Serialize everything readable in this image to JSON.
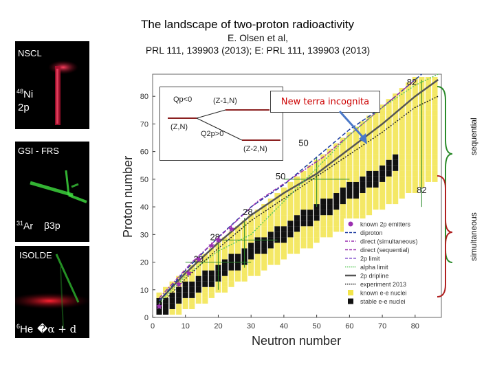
{
  "slide": {
    "title": "The landscape of two-proton radioactivity",
    "citation": "E. Olsen et al,\nPRL 111, 139903 (2013); E: PRL 111, 139903 (2013)",
    "callout": "New terra incognita",
    "bracket_labels": {
      "sequential": "sequential",
      "simultaneous": "simultaneous"
    }
  },
  "panels": [
    {
      "facility": "NSCL",
      "nucleus_mass": "48",
      "nucleus": "Ni",
      "decay": "2p"
    },
    {
      "facility": "GSI - FRS",
      "nucleus_mass": "31",
      "nucleus": "Ar",
      "decay": "β3p"
    },
    {
      "facility": "ISOLDE",
      "nucleus_mass": "6",
      "nucleus": "He",
      "decay": "�α + d"
    }
  ],
  "chart_data": {
    "type": "scatter",
    "xlabel": "Neutron number",
    "ylabel": "Proton number",
    "xlim": [
      0,
      88
    ],
    "ylim": [
      0,
      88
    ],
    "xticks": [
      0,
      10,
      20,
      30,
      40,
      50,
      60,
      70,
      80
    ],
    "yticks": [
      0,
      10,
      20,
      30,
      40,
      50,
      60,
      70,
      80
    ],
    "magic_labels": [
      {
        "text": "82",
        "x": 79,
        "y": 84
      },
      {
        "text": "50",
        "x": 46,
        "y": 62
      },
      {
        "text": "50",
        "x": 39,
        "y": 50
      },
      {
        "text": "82",
        "x": 82,
        "y": 45
      },
      {
        "text": "28",
        "x": 29,
        "y": 37
      },
      {
        "text": "28",
        "x": 19,
        "y": 28
      },
      {
        "text": "20",
        "x": 14,
        "y": 20
      }
    ],
    "inset": {
      "levels": [
        "(Z-1,N)",
        "(Z,N)",
        "(Z-2,N)"
      ],
      "q_labels": [
        "Qp<0",
        "Q2p>0"
      ]
    },
    "legend": {
      "position": "lower-right",
      "entries": [
        {
          "label": "known 2p emitters",
          "color": "#9b30b0",
          "style": "star"
        },
        {
          "label": "diproton",
          "color": "#1a3aa0",
          "style": "dash"
        },
        {
          "label": "direct (simultaneous)",
          "color": "#9b30b0",
          "style": "dashdot"
        },
        {
          "label": "direct (sequential)",
          "color": "#9b30b0",
          "style": "dash"
        },
        {
          "label": "2p limit",
          "color": "#8a5bd0",
          "style": "dash"
        },
        {
          "label": "alpha limit",
          "color": "#5ac85a",
          "style": "dot"
        },
        {
          "label": "2p dripline",
          "color": "#555555",
          "style": "solid"
        },
        {
          "label": "experiment 2013",
          "color": "#222222",
          "style": "dot"
        },
        {
          "label": "known e-e nuclei",
          "color": "#f2e44a",
          "style": "square"
        },
        {
          "label": "stable e-e nuclei",
          "color": "#111111",
          "style": "square"
        }
      ]
    },
    "known_2p_emitters": [
      [
        2,
        4
      ],
      [
        8,
        12
      ],
      [
        11,
        16
      ],
      [
        14,
        21
      ],
      [
        18,
        26
      ],
      [
        20,
        28
      ],
      [
        24,
        32
      ]
    ],
    "series": [
      {
        "name": "2p dripline",
        "points": [
          [
            2,
            6
          ],
          [
            10,
            16
          ],
          [
            20,
            27
          ],
          [
            30,
            37
          ],
          [
            40,
            45
          ],
          [
            50,
            52
          ],
          [
            60,
            61
          ],
          [
            70,
            70
          ],
          [
            80,
            80
          ],
          [
            87,
            86
          ]
        ]
      },
      {
        "name": "experiment 2013",
        "points": [
          [
            2,
            4
          ],
          [
            10,
            14
          ],
          [
            20,
            25
          ],
          [
            30,
            35
          ],
          [
            40,
            43
          ],
          [
            50,
            51
          ],
          [
            60,
            59
          ],
          [
            70,
            67
          ],
          [
            80,
            76
          ],
          [
            87,
            80
          ]
        ]
      },
      {
        "name": "diproton",
        "points": [
          [
            2,
            6
          ],
          [
            10,
            17
          ],
          [
            20,
            29
          ],
          [
            30,
            40
          ],
          [
            40,
            48
          ],
          [
            50,
            58
          ],
          [
            60,
            68
          ],
          [
            70,
            76
          ],
          [
            78,
            84
          ],
          [
            82,
            88
          ]
        ]
      },
      {
        "name": "direct (simultaneous)",
        "points": [
          [
            2,
            7
          ],
          [
            12,
            20
          ],
          [
            22,
            31
          ],
          [
            32,
            42
          ],
          [
            42,
            50
          ],
          [
            52,
            58
          ],
          [
            62,
            68
          ],
          [
            72,
            78
          ],
          [
            80,
            86
          ]
        ]
      },
      {
        "name": "alpha limit",
        "points": [
          [
            2,
            5
          ],
          [
            10,
            15
          ],
          [
            20,
            24
          ],
          [
            30,
            30
          ],
          [
            40,
            42
          ],
          [
            50,
            54
          ],
          [
            60,
            66
          ],
          [
            70,
            76
          ],
          [
            80,
            84
          ],
          [
            87,
            88
          ]
        ]
      }
    ]
  }
}
